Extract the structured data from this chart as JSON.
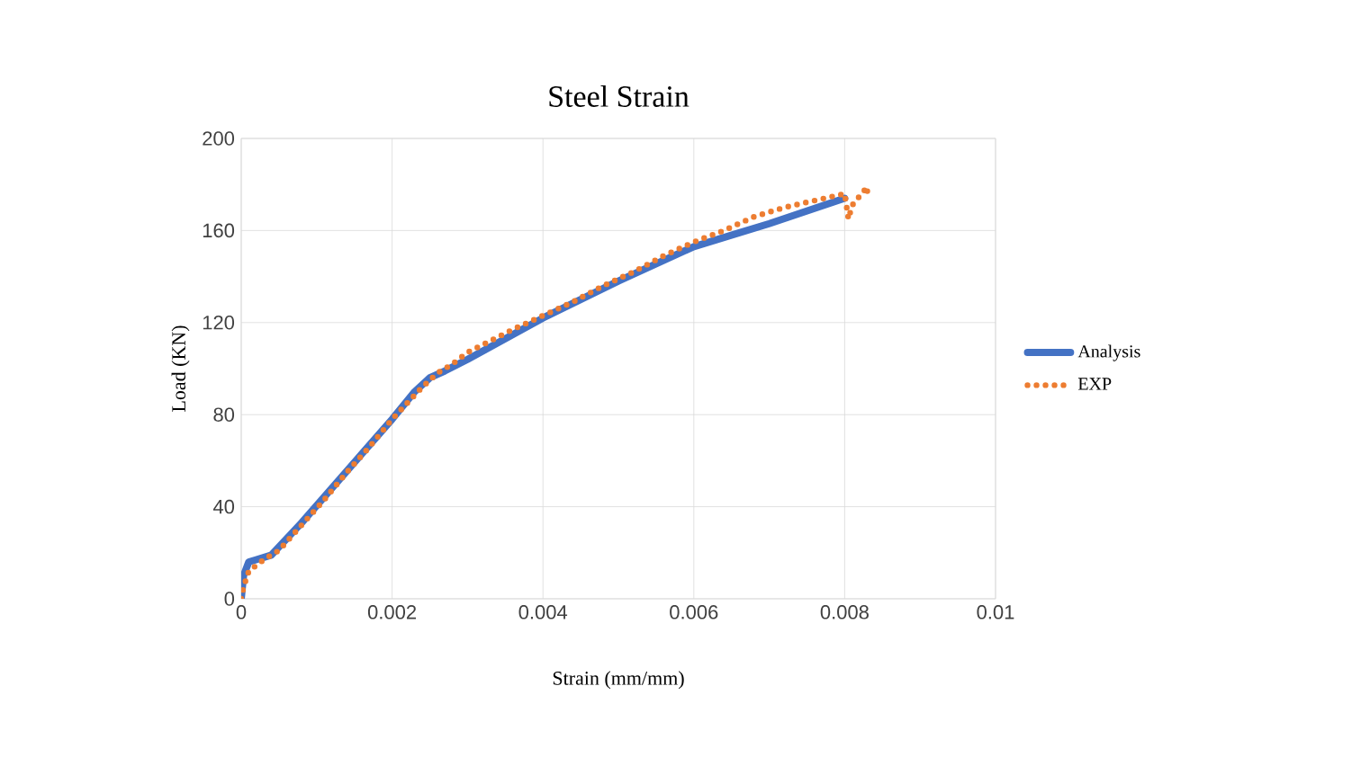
{
  "chart_data": {
    "type": "line",
    "title": "Steel Strain",
    "xlabel": "Strain (mm/mm)",
    "ylabel": "Load (KN)",
    "xlim": [
      0,
      0.01
    ],
    "ylim": [
      0,
      200
    ],
    "xticks": [
      0,
      0.002,
      0.004,
      0.006,
      0.008,
      0.01
    ],
    "yticks": [
      0,
      40,
      80,
      120,
      160,
      200
    ],
    "grid": true,
    "legend": "right",
    "series": [
      {
        "name": "Analysis",
        "color": "#4472c4",
        "line_style": "solid",
        "x": [
          0,
          3e-05,
          0.0001,
          0.0002,
          0.0004,
          0.0008,
          0.0012,
          0.0016,
          0.002,
          0.0023,
          0.0025,
          0.0027,
          0.003,
          0.004,
          0.005,
          0.006,
          0.007,
          0.008
        ],
        "values": [
          0,
          10,
          16,
          17,
          19,
          33,
          48,
          63,
          78,
          90,
          96,
          99,
          104,
          122,
          138,
          153,
          163,
          174
        ]
      },
      {
        "name": "EXP",
        "color": "#ed7d31",
        "line_style": "dotted",
        "x": [
          0,
          3e-05,
          0.0001,
          0.0003,
          0.0005,
          0.0008,
          0.0011,
          0.0014,
          0.0017,
          0.002,
          0.0022,
          0.0024,
          0.0026,
          0.0028,
          0.003,
          0.0033,
          0.0036,
          0.004,
          0.0044,
          0.0048,
          0.0052,
          0.0056,
          0.006,
          0.0064,
          0.0068,
          0.0072,
          0.0076,
          0.008,
          0.00805,
          0.0081,
          0.0083,
          0.0083
        ],
        "values": [
          0,
          5,
          12,
          17,
          21,
          32,
          43,
          55,
          66,
          78,
          85,
          92,
          98,
          102,
          107,
          112,
          117,
          123,
          129,
          136,
          142,
          149,
          155,
          160,
          166,
          170,
          173,
          176,
          165,
          171,
          179,
          176
        ]
      }
    ]
  }
}
